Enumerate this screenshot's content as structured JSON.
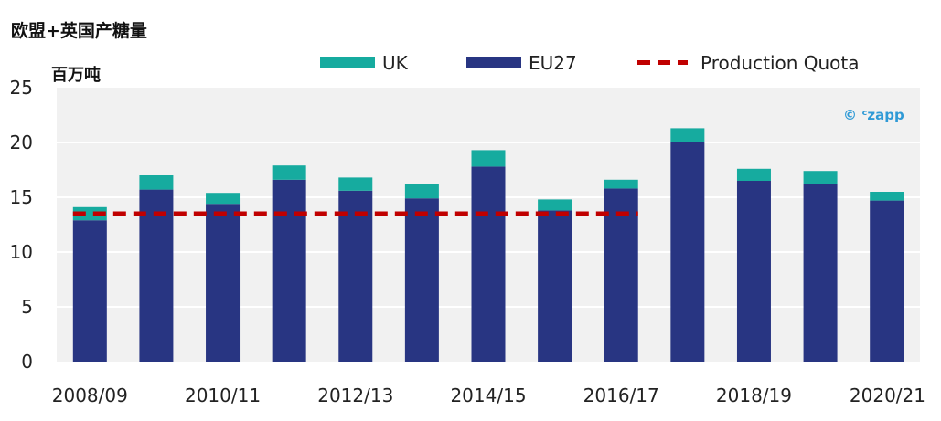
{
  "chart_data": {
    "type": "bar",
    "stacked": true,
    "title": "欧盟+英国产糖量",
    "unit_label": "百万吨",
    "categories": [
      "2008/09",
      "2009/10",
      "2010/11",
      "2011/12",
      "2012/13",
      "2013/14",
      "2014/15",
      "2015/16",
      "2016/17",
      "2017/18",
      "2018/19",
      "2019/20",
      "2020/21"
    ],
    "x_tick_labels": [
      "2008/09",
      "",
      "2010/11",
      "",
      "2012/13",
      "",
      "2014/15",
      "",
      "2016/17",
      "",
      "2018/19",
      "",
      "2020/21"
    ],
    "series": [
      {
        "name": "EU27",
        "color": "#283582",
        "values": [
          12.9,
          15.7,
          14.4,
          16.6,
          15.6,
          14.9,
          17.8,
          13.8,
          15.8,
          20.0,
          16.5,
          16.2,
          14.7
        ]
      },
      {
        "name": "UK",
        "color": "#16ab9f",
        "values": [
          1.2,
          1.3,
          1.0,
          1.3,
          1.2,
          1.3,
          1.5,
          1.0,
          0.8,
          1.3,
          1.1,
          1.2,
          0.8
        ]
      }
    ],
    "reference_line": {
      "name": "Production Quota",
      "color": "#c00000",
      "value": 13.5,
      "from_category": "2008/09",
      "to_category": "2016/17",
      "style": "dashed"
    },
    "ylim": [
      0,
      25
    ],
    "y_ticks": [
      0,
      5,
      10,
      15,
      20,
      25
    ],
    "grid": true,
    "legend_position": "top",
    "legend_order": [
      "UK",
      "EU27",
      "Production Quota"
    ],
    "watermark": "© ᶜzapp"
  }
}
